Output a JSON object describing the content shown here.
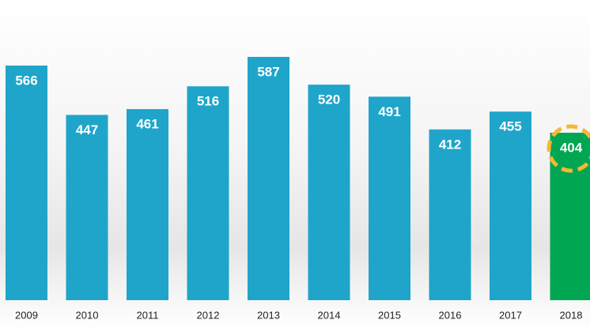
{
  "chart_data": {
    "type": "bar",
    "categories": [
      "2009",
      "2010",
      "2011",
      "2012",
      "2013",
      "2014",
      "2015",
      "2016",
      "2017",
      "2018"
    ],
    "values": [
      566,
      447,
      461,
      516,
      587,
      520,
      491,
      412,
      455,
      404
    ],
    "colors": [
      "#1fa5ca",
      "#1fa5ca",
      "#1fa5ca",
      "#1fa5ca",
      "#1fa5ca",
      "#1fa5ca",
      "#1fa5ca",
      "#1fa5ca",
      "#1fa5ca",
      "#00a651"
    ],
    "highlight_color": "#f7b733"
  }
}
